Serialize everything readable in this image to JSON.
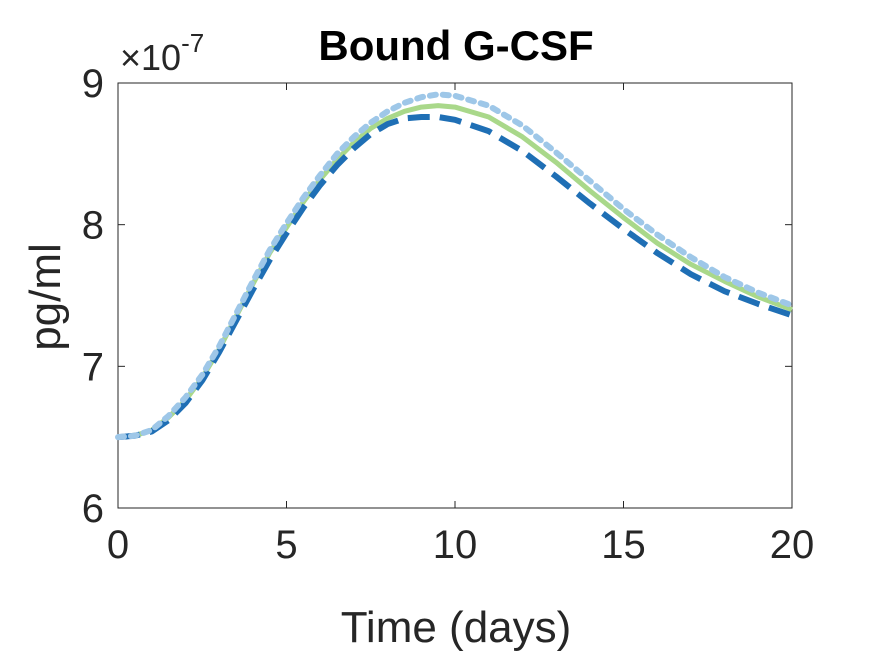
{
  "chart_data": {
    "type": "line",
    "title": "Bound G-CSF",
    "xlabel": "Time (days)",
    "ylabel": "pg/ml",
    "y_multiplier": {
      "base": "×10",
      "exponent": "-7"
    },
    "xlim": [
      0,
      20
    ],
    "ylim": [
      6,
      9
    ],
    "xticks": [
      0,
      5,
      10,
      15,
      20
    ],
    "xtick_labels": [
      "0",
      "5",
      "10",
      "15",
      "20"
    ],
    "yticks": [
      6,
      7,
      8,
      9
    ],
    "ytick_labels": [
      "6",
      "7",
      "8",
      "9"
    ],
    "grid": false,
    "legend": "none",
    "x": [
      0,
      0.5,
      1,
      1.5,
      2,
      2.5,
      3,
      3.5,
      4,
      4.5,
      5,
      5.5,
      6,
      6.5,
      7,
      7.5,
      8,
      8.5,
      9,
      9.5,
      10,
      11,
      12,
      13,
      14,
      15,
      16,
      17,
      18,
      19,
      20
    ],
    "series": [
      {
        "color": "#a9d88a",
        "style": "solid",
        "values": [
          6.5,
          6.51,
          6.55,
          6.64,
          6.76,
          6.92,
          7.12,
          7.35,
          7.58,
          7.8,
          7.98,
          8.16,
          8.32,
          8.46,
          8.58,
          8.68,
          8.75,
          8.8,
          8.83,
          8.84,
          8.83,
          8.76,
          8.62,
          8.44,
          8.24,
          8.05,
          7.87,
          7.72,
          7.6,
          7.49,
          7.4
        ]
      },
      {
        "color": "#1f6fb5",
        "style": "dashed",
        "values": [
          6.5,
          6.51,
          6.54,
          6.62,
          6.74,
          6.9,
          7.1,
          7.32,
          7.54,
          7.75,
          7.94,
          8.12,
          8.28,
          8.42,
          8.54,
          8.64,
          8.71,
          8.75,
          8.76,
          8.76,
          8.74,
          8.66,
          8.52,
          8.34,
          8.15,
          7.97,
          7.8,
          7.65,
          7.53,
          7.44,
          7.36
        ]
      },
      {
        "color": "#9ec7e8",
        "style": "dotted",
        "values": [
          6.5,
          6.51,
          6.55,
          6.65,
          6.78,
          6.94,
          7.14,
          7.37,
          7.6,
          7.82,
          8.01,
          8.19,
          8.35,
          8.5,
          8.62,
          8.72,
          8.8,
          8.86,
          8.9,
          8.92,
          8.91,
          8.84,
          8.7,
          8.51,
          8.31,
          8.11,
          7.93,
          7.77,
          7.63,
          7.52,
          7.43
        ]
      }
    ]
  }
}
